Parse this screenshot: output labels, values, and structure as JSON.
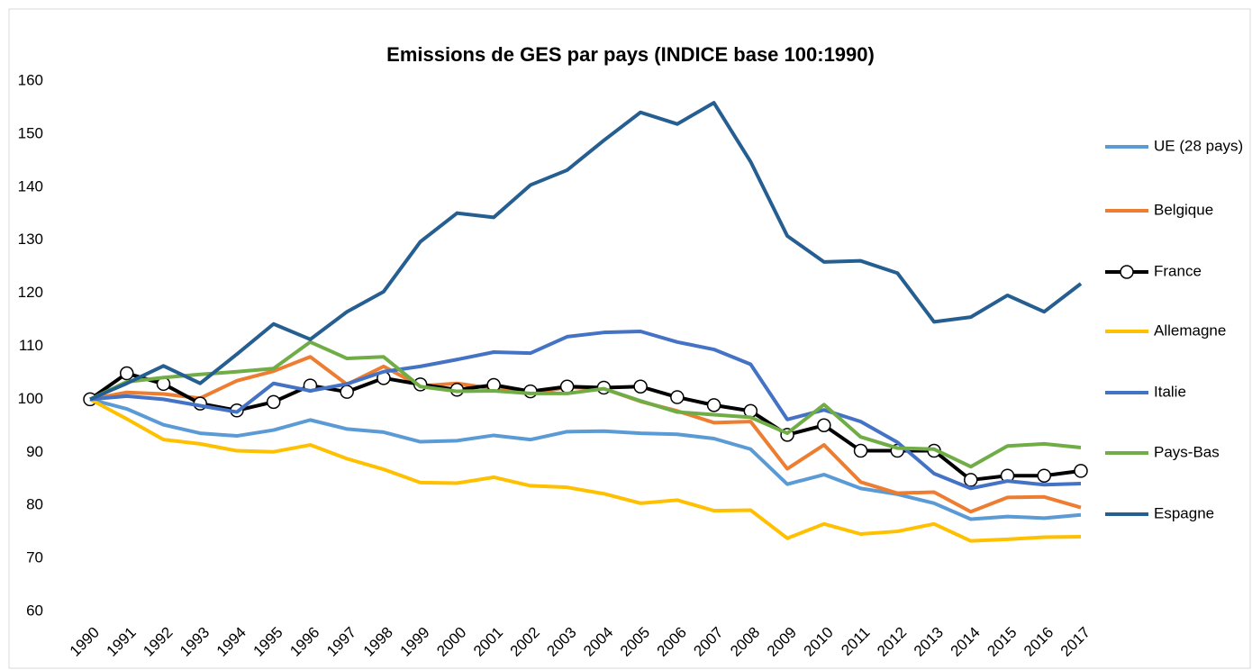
{
  "chart_data": {
    "type": "line",
    "title": "Emissions  de GES par pays (INDICE base 100:1990)",
    "categories": [
      "1990",
      "1991",
      "1992",
      "1993",
      "1994",
      "1995",
      "1996",
      "1997",
      "1998",
      "1999",
      "2000",
      "2001",
      "2002",
      "2003",
      "2004",
      "2005",
      "2006",
      "2007",
      "2008",
      "2009",
      "2010",
      "2011",
      "2012",
      "2013",
      "2014",
      "2015",
      "2016",
      "2017"
    ],
    "ylim": [
      60,
      160
    ],
    "yticks": [
      60,
      70,
      80,
      90,
      100,
      110,
      120,
      130,
      140,
      150,
      160
    ],
    "grid": false,
    "legend": "right",
    "series": [
      {
        "name": "UE (28 pays)",
        "color": "#5b9bd5",
        "values": [
          100,
          98.2,
          95.2,
          93.6,
          93.1,
          94.2,
          96.1,
          94.4,
          93.8,
          92.0,
          92.2,
          93.2,
          92.4,
          93.9,
          94.0,
          93.6,
          93.4,
          92.6,
          90.6,
          84.0,
          85.8,
          83.2,
          82.1,
          80.4,
          77.4,
          77.9,
          77.6,
          78.2
        ]
      },
      {
        "name": "Belgique",
        "color": "#ed7d31",
        "values": [
          100,
          101.3,
          101,
          100.2,
          103.5,
          105.3,
          108,
          102.8,
          106.2,
          102.5,
          103,
          102,
          101,
          102.3,
          102,
          99.6,
          97.8,
          95.6,
          95.8,
          86.9,
          91.4,
          84.4,
          82.3,
          82.5,
          78.8,
          81.5,
          81.6,
          79.6
        ]
      },
      {
        "name": "France",
        "color": "#000000",
        "marker": "circle",
        "values": [
          100,
          104.9,
          102.9,
          99.2,
          97.9,
          99.5,
          102.6,
          101.4,
          104,
          102.8,
          101.8,
          102.7,
          101.5,
          102.4,
          102.2,
          102.4,
          100.4,
          98.9,
          97.8,
          93.3,
          95.1,
          90.3,
          90.3,
          90.3,
          84.8,
          85.6,
          85.6,
          86.5
        ]
      },
      {
        "name": "Allemagne",
        "color": "#ffc000",
        "values": [
          100,
          96.3,
          92.4,
          91.6,
          90.3,
          90.1,
          91.4,
          88.8,
          86.8,
          84.3,
          84.2,
          85.3,
          83.7,
          83.4,
          82.2,
          80.4,
          81,
          79,
          79.1,
          73.8,
          76.5,
          74.6,
          75.1,
          76.5,
          73.3,
          73.6,
          74,
          74.1
        ]
      },
      {
        "name": "Italie",
        "color": "#4472c4",
        "values": [
          100,
          100.6,
          100,
          98.8,
          97.6,
          103,
          101.6,
          102.9,
          105.2,
          106.2,
          107.5,
          108.9,
          108.7,
          111.8,
          112.6,
          112.8,
          110.8,
          109.4,
          106.6,
          96.2,
          98,
          95.8,
          91.9,
          86,
          83.2,
          84.6,
          83.9,
          84.1
        ]
      },
      {
        "name": "Pays-Bas",
        "color": "#70ad47",
        "values": [
          100,
          103.3,
          104.1,
          104.7,
          105.2,
          105.8,
          110.8,
          107.7,
          108,
          102.4,
          101.5,
          101.6,
          101.1,
          101.1,
          102,
          99.7,
          97.6,
          97.1,
          96.6,
          93.6,
          99,
          92.9,
          90.8,
          90.6,
          87.3,
          91.2,
          91.6,
          90.9
        ]
      },
      {
        "name": "Espagne",
        "color": "#255e91",
        "values": [
          100,
          103,
          106.3,
          103,
          108.5,
          114.2,
          111.3,
          116.5,
          120.3,
          129.7,
          135.1,
          134.3,
          140.4,
          143.2,
          148.8,
          154.1,
          151.9,
          155.9,
          144.8,
          130.8,
          125.9,
          126.1,
          123.8,
          114.6,
          115.5,
          119.6,
          116.5,
          121.8
        ]
      }
    ]
  }
}
